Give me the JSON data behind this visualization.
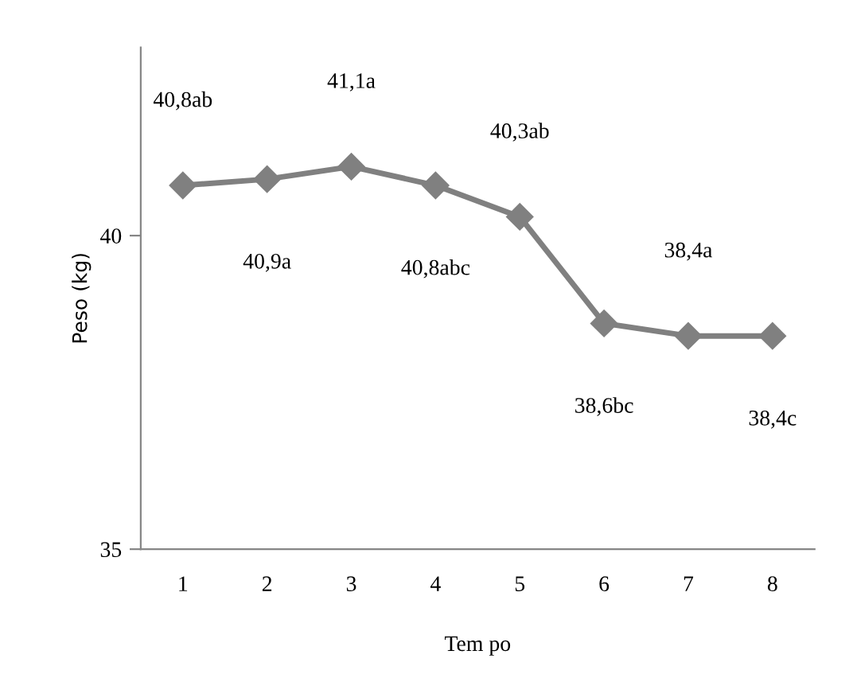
{
  "chart_data": {
    "type": "line",
    "xlabel": "Tem po",
    "ylabel": "Peso (kg)",
    "categories": [
      "1",
      "2",
      "3",
      "4",
      "5",
      "6",
      "7",
      "8"
    ],
    "series": [
      {
        "color": "#808080",
        "values": [
          40.8,
          40.9,
          41.1,
          40.8,
          40.3,
          38.6,
          38.4,
          38.4
        ],
        "value_labels": [
          "40,8ab",
          "40,9a",
          "41,1a",
          "40,8abc",
          "40,3ab",
          "38,6bc",
          "38,4a",
          "38,4c"
        ]
      }
    ],
    "ylim": [
      35,
      43
    ],
    "yticks": [
      35,
      40
    ],
    "marker": "diamond",
    "line_style": "solid",
    "grid": false,
    "legend": false
  }
}
